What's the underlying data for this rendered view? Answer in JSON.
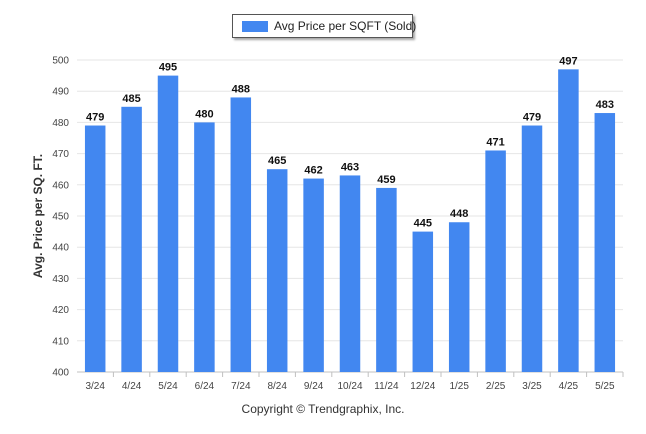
{
  "chart_data": {
    "type": "bar",
    "title": "",
    "xlabel": "",
    "ylabel": "Avg. Price per SQ. FT.",
    "categories": [
      "3/24",
      "4/24",
      "5/24",
      "6/24",
      "7/24",
      "8/24",
      "9/24",
      "10/24",
      "11/24",
      "12/24",
      "1/25",
      "2/25",
      "3/25",
      "4/25",
      "5/25"
    ],
    "series": [
      {
        "name": "Avg Price per SQFT (Sold)",
        "values": [
          479,
          485,
          495,
          480,
          488,
          465,
          462,
          463,
          459,
          445,
          448,
          471,
          479,
          497,
          483
        ]
      }
    ],
    "ylim": [
      400,
      500
    ],
    "yticks": [
      400,
      410,
      420,
      430,
      440,
      450,
      460,
      470,
      480,
      490,
      500
    ],
    "grid": true,
    "data_labels": true,
    "legend": "top-center",
    "bar_color": "#4287f0"
  },
  "legend": {
    "label": "Avg Price per SQFT (Sold)"
  },
  "footer": {
    "credit": "Copyright © Trendgraphix, Inc."
  }
}
